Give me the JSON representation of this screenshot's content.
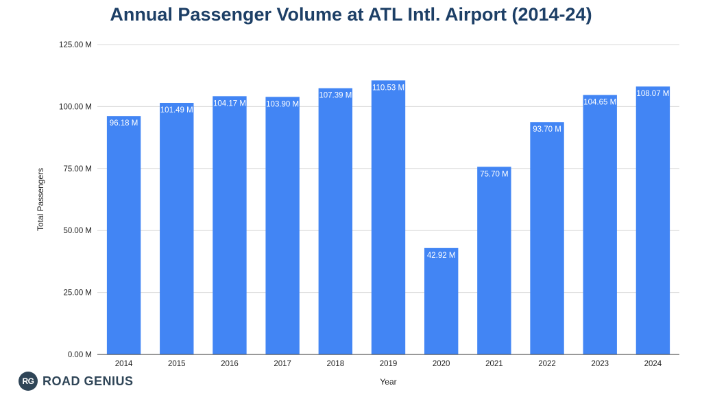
{
  "chart_data": {
    "type": "bar",
    "title": "Annual Passenger Volume at ATL Intl. Airport (2014-24)",
    "xlabel": "Year",
    "ylabel": "Total Passengers",
    "categories": [
      "2014",
      "2015",
      "2016",
      "2017",
      "2018",
      "2019",
      "2020",
      "2021",
      "2022",
      "2023",
      "2024"
    ],
    "values": [
      96.18,
      101.49,
      104.17,
      103.9,
      107.39,
      110.53,
      42.92,
      75.7,
      93.7,
      104.65,
      108.07
    ],
    "value_labels": [
      "96.18 M",
      "101.49 M",
      "104.17 M",
      "103.90 M",
      "107.39 M",
      "110.53 M",
      "42.92 M",
      "75.70 M",
      "93.70 M",
      "104.65 M",
      "108.07 M"
    ],
    "ylim": [
      0,
      125
    ],
    "yticks": [
      0,
      25,
      50,
      75,
      100,
      125
    ],
    "ytick_labels": [
      "0.00 M",
      "25.00 M",
      "50.00 M",
      "75.00 M",
      "100.00 M",
      "125.00 M"
    ],
    "grid": true,
    "legend": "none",
    "bar_color": "#4285f4",
    "gridline_color": "#d9d9d9",
    "label_color": "#ffffff"
  },
  "logo": {
    "badge": "RG",
    "name": "ROAD GENIUS"
  }
}
